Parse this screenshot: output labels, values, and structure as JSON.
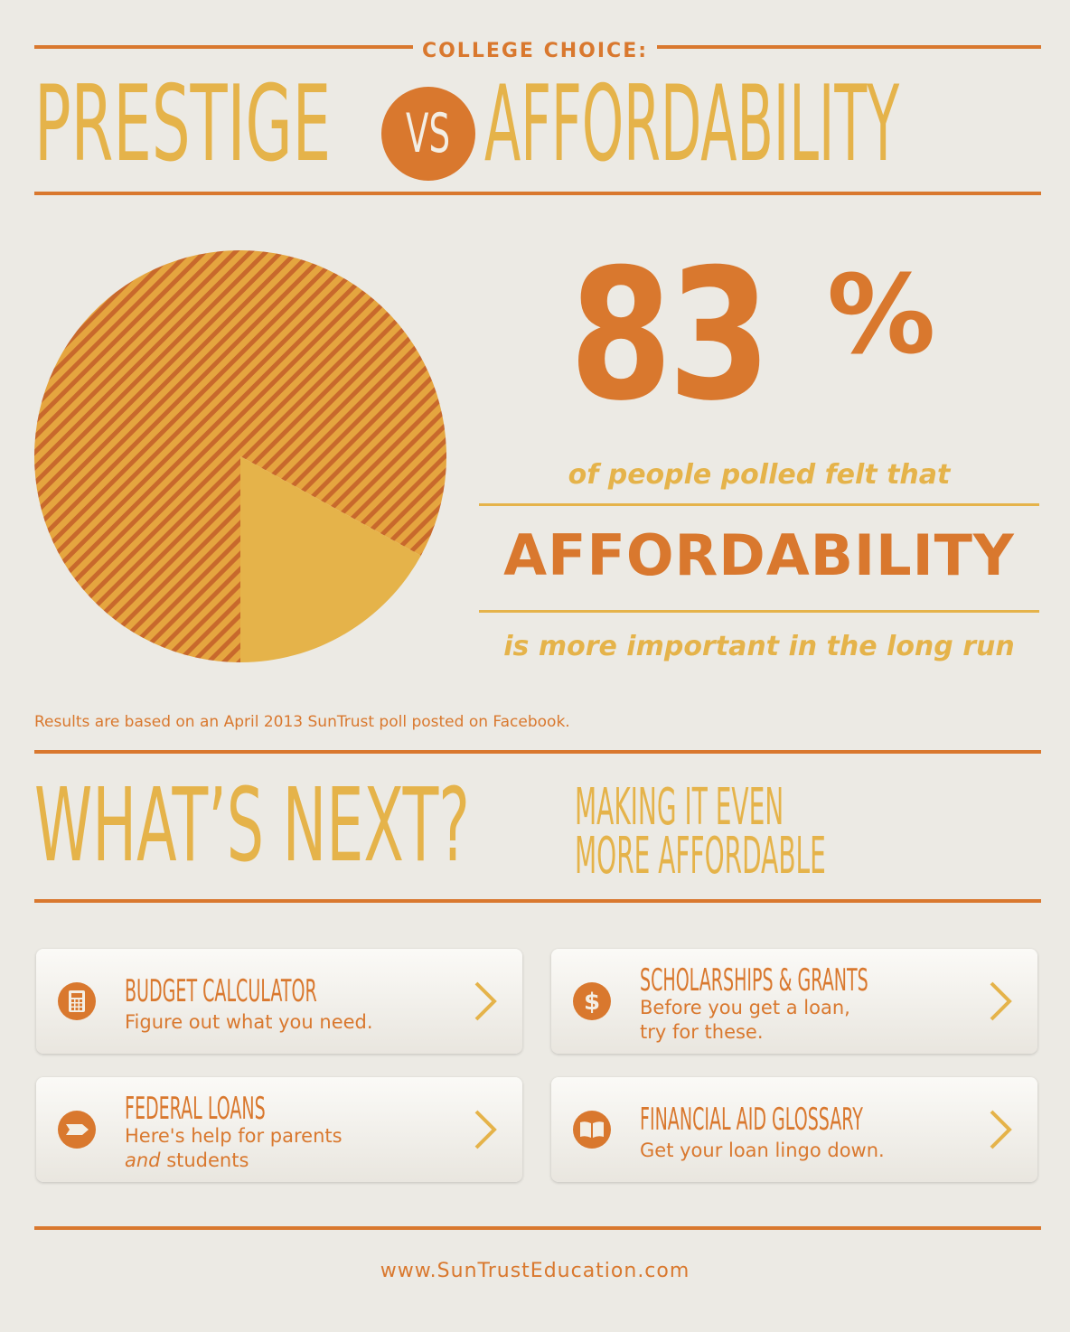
{
  "header": {
    "kicker": "COLLEGE CHOICE:",
    "left_title": "PRESTIGE",
    "vs": "VS",
    "right_title": "AFFORDABILITY"
  },
  "stat": {
    "percent_number": "83",
    "percent_sign": "%",
    "line1": "of people polled felt that",
    "highlight": "AFFORDABILITY",
    "line2": "is more important in the long run",
    "source": "Results are based on an April 2013 SunTrust poll posted on Facebook."
  },
  "chart_data": {
    "type": "pie",
    "values": [
      83,
      17
    ],
    "colors": [
      "#D9782E",
      "#E5B34A"
    ]
  },
  "whats_next": {
    "title": "WHAT’S NEXT?",
    "subtitle_line1": "MAKING IT EVEN",
    "subtitle_line2": "MORE AFFORDABLE"
  },
  "cards": [
    {
      "title": "BUDGET CALCULATOR",
      "desc1": "Figure out what you need.",
      "desc2": "",
      "icon": "calculator-icon"
    },
    {
      "title": "SCHOLARSHIPS & GRANTS",
      "desc1": "Before you get a loan,",
      "desc2": "try for these.",
      "icon": "dollar-icon"
    },
    {
      "title": "FEDERAL LOANS",
      "desc1": "Here's help for parents",
      "desc2_italic": "and",
      "desc2": " students",
      "icon": "arrow-tag-icon"
    },
    {
      "title": "FINANCIAL AID GLOSSARY",
      "desc1": "Get your loan lingo down.",
      "desc2": "",
      "icon": "book-icon"
    }
  ],
  "footer": {
    "url": "www.SunTrustEducation.com"
  },
  "colors": {
    "background": "#ECEAE4",
    "orange": "#D9782E",
    "gold": "#E5B34A"
  }
}
